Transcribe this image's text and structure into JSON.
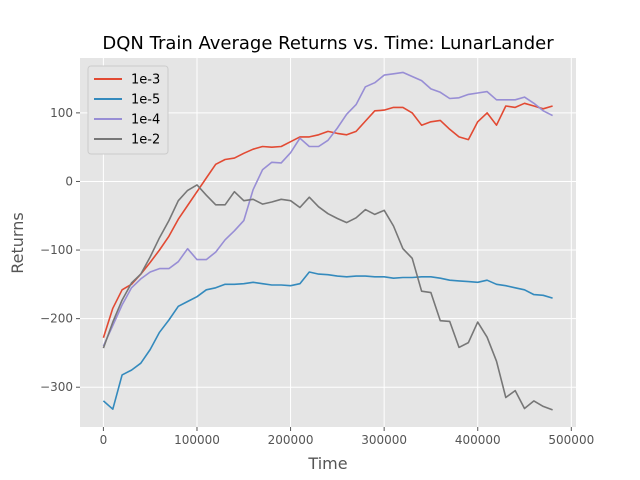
{
  "chart_data": {
    "type": "line",
    "title": "DQN Train Average Returns vs. Time: LunarLander",
    "xlabel": "Time",
    "ylabel": "Returns",
    "xlim": [
      -25000,
      505000
    ],
    "ylim": [
      -358,
      180
    ],
    "xticks": [
      0,
      100000,
      200000,
      300000,
      400000,
      500000
    ],
    "xtick_labels": [
      "0",
      "100000",
      "200000",
      "300000",
      "400000",
      "500000"
    ],
    "yticks": [
      -300,
      -200,
      -100,
      0,
      100
    ],
    "ytick_labels": [
      "−300",
      "−200",
      "−100",
      "0",
      "100"
    ],
    "grid": true,
    "legend_position": "top-left",
    "series": [
      {
        "name": "1e-3",
        "color": "#E24A33",
        "x": [
          0,
          10000,
          20000,
          30000,
          40000,
          50000,
          60000,
          70000,
          80000,
          90000,
          100000,
          110000,
          120000,
          130000,
          140000,
          150000,
          160000,
          170000,
          180000,
          190000,
          200000,
          210000,
          220000,
          230000,
          240000,
          250000,
          260000,
          270000,
          280000,
          290000,
          300000,
          310000,
          320000,
          330000,
          340000,
          350000,
          360000,
          370000,
          380000,
          390000,
          400000,
          410000,
          420000,
          430000,
          440000,
          450000,
          460000,
          470000,
          480000
        ],
        "y": [
          -228,
          -185,
          -158,
          -150,
          -135,
          -118,
          -100,
          -80,
          -55,
          -35,
          -15,
          5,
          25,
          32,
          34,
          41,
          47,
          51,
          50,
          51,
          58,
          65,
          65,
          68,
          73,
          70,
          68,
          73,
          88,
          103,
          104,
          108,
          108,
          100,
          82,
          87,
          89,
          76,
          65,
          61,
          87,
          100,
          82,
          110,
          108,
          114,
          110,
          106,
          110
        ]
      },
      {
        "name": "1e-5",
        "color": "#348ABD",
        "x": [
          0,
          10000,
          20000,
          30000,
          40000,
          50000,
          60000,
          70000,
          80000,
          90000,
          100000,
          110000,
          120000,
          130000,
          140000,
          150000,
          160000,
          170000,
          180000,
          190000,
          200000,
          210000,
          220000,
          230000,
          240000,
          250000,
          260000,
          270000,
          280000,
          290000,
          300000,
          310000,
          320000,
          330000,
          340000,
          350000,
          360000,
          370000,
          380000,
          390000,
          400000,
          410000,
          420000,
          430000,
          440000,
          450000,
          460000,
          470000,
          480000
        ],
        "y": [
          -320,
          -332,
          -282,
          -275,
          -265,
          -245,
          -220,
          -202,
          -182,
          -175,
          -168,
          -158,
          -155,
          -150,
          -150,
          -149,
          -147,
          -149,
          -151,
          -151,
          -152,
          -149,
          -132,
          -135,
          -136,
          -138,
          -139,
          -138,
          -138,
          -139,
          -139,
          -141,
          -140,
          -140,
          -139,
          -139,
          -141,
          -144,
          -145,
          -146,
          -147,
          -144,
          -150,
          -152,
          -155,
          -158,
          -165,
          -166,
          -170
        ]
      },
      {
        "name": "1e-4",
        "color": "#988ED5",
        "x": [
          0,
          10000,
          20000,
          30000,
          40000,
          50000,
          60000,
          70000,
          80000,
          90000,
          100000,
          110000,
          120000,
          130000,
          140000,
          150000,
          160000,
          170000,
          180000,
          190000,
          200000,
          210000,
          220000,
          230000,
          240000,
          250000,
          260000,
          270000,
          280000,
          290000,
          300000,
          310000,
          320000,
          330000,
          340000,
          350000,
          360000,
          370000,
          380000,
          390000,
          400000,
          410000,
          420000,
          430000,
          440000,
          450000,
          460000,
          470000,
          480000
        ],
        "y": [
          -240,
          -210,
          -180,
          -155,
          -142,
          -132,
          -127,
          -127,
          -117,
          -98,
          -114,
          -114,
          -103,
          -85,
          -72,
          -57,
          -12,
          17,
          28,
          27,
          42,
          63,
          51,
          51,
          60,
          78,
          98,
          112,
          138,
          144,
          155,
          157,
          159,
          153,
          147,
          135,
          130,
          121,
          122,
          127,
          129,
          131,
          119,
          119,
          119,
          123,
          114,
          103,
          96
        ]
      },
      {
        "name": "1e-2",
        "color": "#777777",
        "x": [
          0,
          10000,
          20000,
          30000,
          40000,
          50000,
          60000,
          70000,
          80000,
          90000,
          100000,
          110000,
          120000,
          130000,
          140000,
          150000,
          160000,
          170000,
          180000,
          190000,
          200000,
          210000,
          220000,
          230000,
          240000,
          250000,
          260000,
          270000,
          280000,
          290000,
          300000,
          310000,
          320000,
          330000,
          340000,
          350000,
          360000,
          370000,
          380000,
          390000,
          400000,
          410000,
          420000,
          430000,
          440000,
          450000,
          460000,
          470000,
          480000
        ],
        "y": [
          -243,
          -205,
          -173,
          -148,
          -135,
          -110,
          -82,
          -57,
          -28,
          -13,
          -5,
          -20,
          -34,
          -34,
          -15,
          -28,
          -26,
          -33,
          -30,
          -26,
          -28,
          -38,
          -23,
          -37,
          -47,
          -54,
          -60,
          -53,
          -41,
          -48,
          -42,
          -65,
          -98,
          -112,
          -160,
          -162,
          -203,
          -204,
          -242,
          -235,
          -205,
          -227,
          -262,
          -315,
          -305,
          -331,
          -320,
          -328,
          -333
        ]
      }
    ]
  }
}
